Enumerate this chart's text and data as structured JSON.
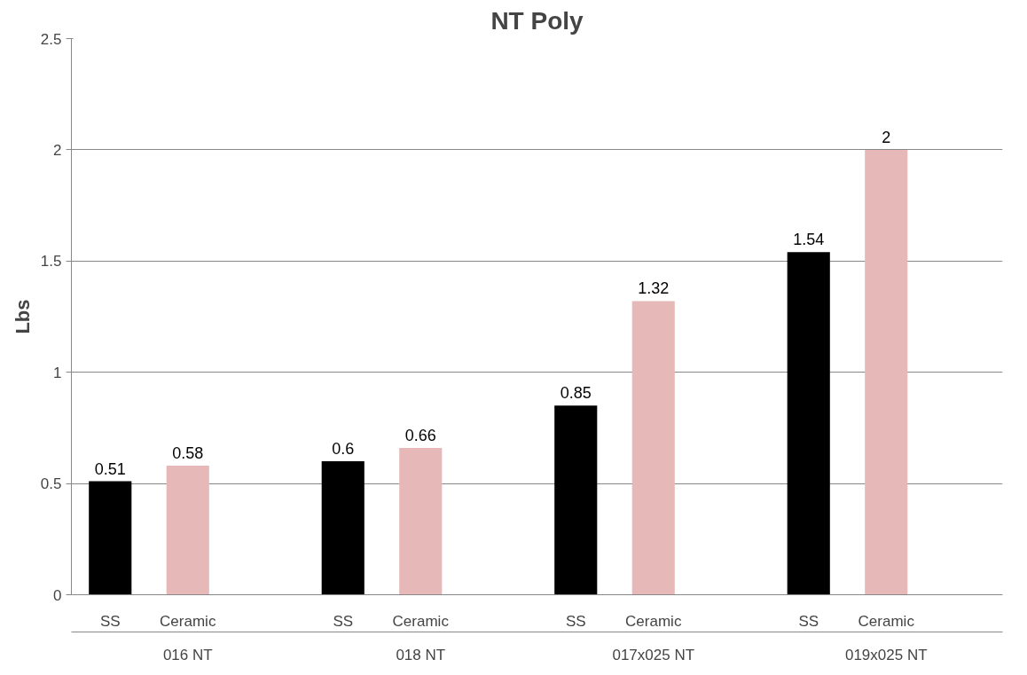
{
  "chart_data": {
    "type": "bar",
    "title": "NT Poly",
    "ylabel": "Lbs",
    "categories": [
      "016 NT",
      "018 NT",
      "017x025 NT",
      "019x025 NT"
    ],
    "series": [
      {
        "name": "SS",
        "color": "#000000",
        "values": [
          0.51,
          0.6,
          0.85,
          1.54
        ]
      },
      {
        "name": "Ceramic",
        "color": "#e6b9b8",
        "values": [
          0.58,
          0.66,
          1.32,
          2
        ]
      }
    ],
    "ylim": [
      0,
      2.5
    ],
    "yticks": [
      0,
      0.5,
      1,
      1.5,
      2,
      2.5
    ],
    "grid": "y",
    "data_labels": true
  }
}
